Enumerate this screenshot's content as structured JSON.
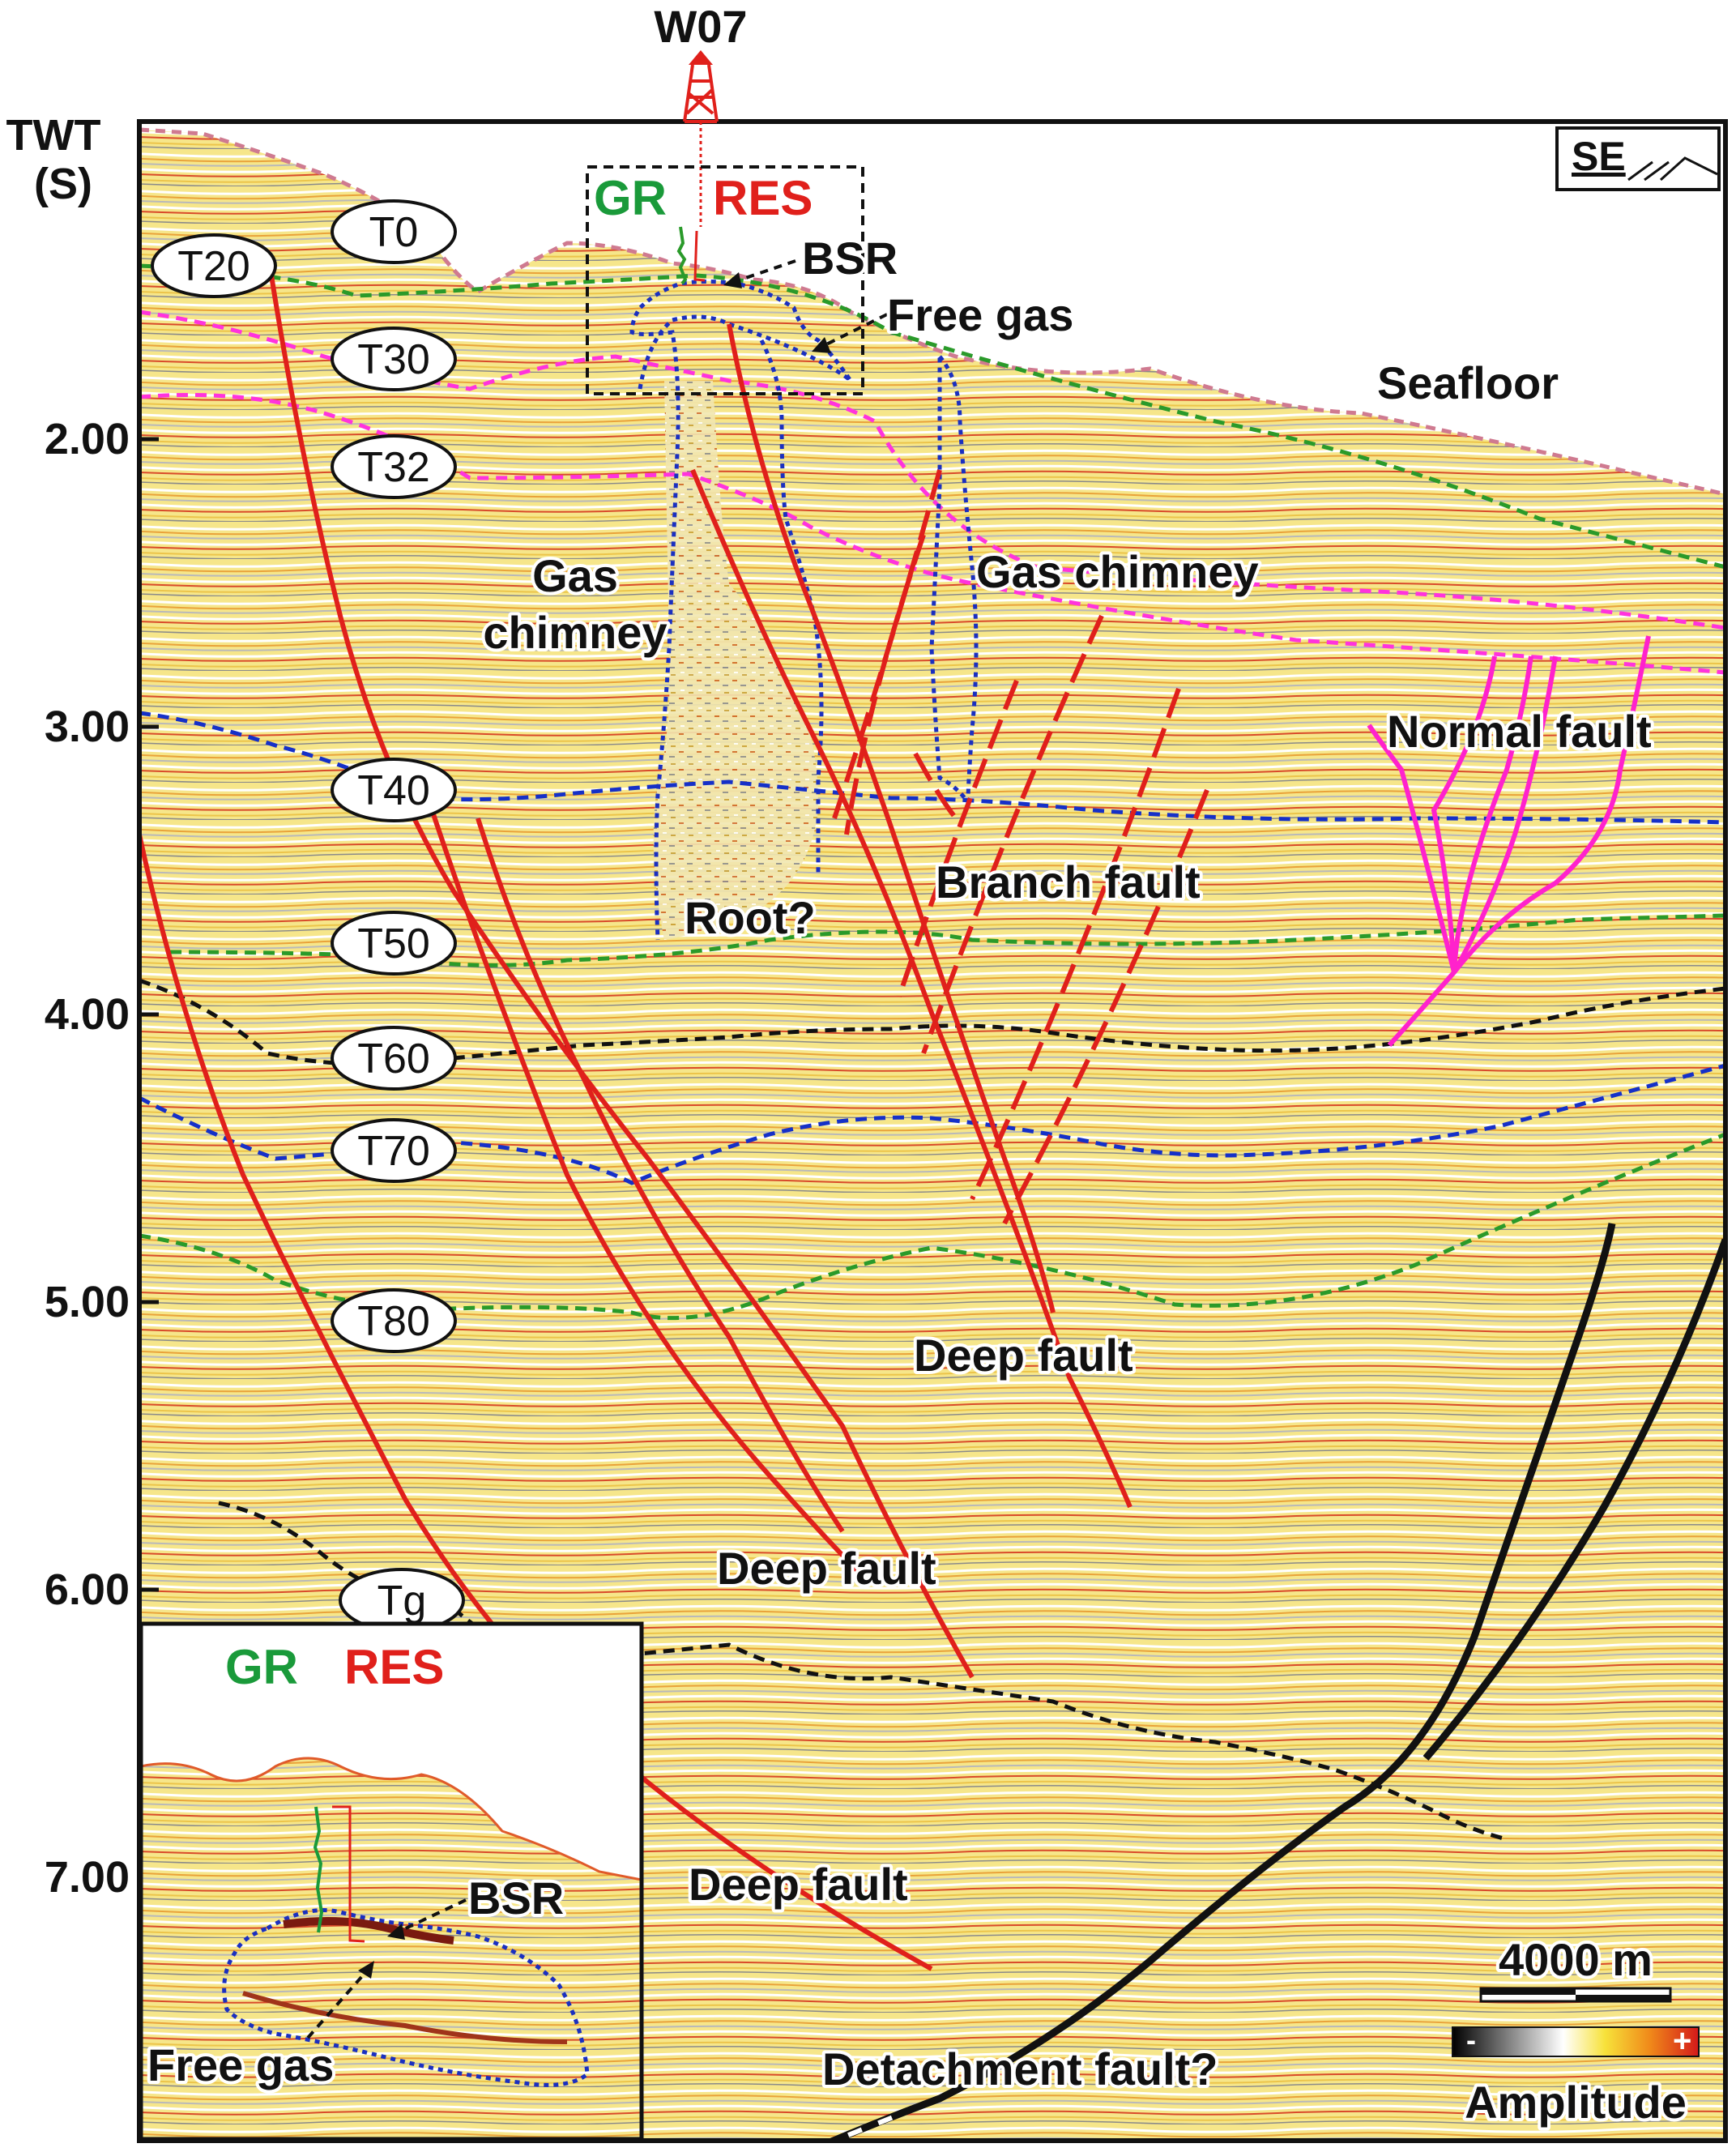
{
  "well": {
    "name": "W07",
    "gr_label": "GR",
    "res_label": "RES"
  },
  "axis": {
    "title_line1": "TWT",
    "title_line2": "(S)",
    "ticks": [
      "2.00",
      "3.00",
      "4.00",
      "5.00",
      "6.00",
      "7.00"
    ]
  },
  "orientation": "SE",
  "horizons": [
    "T0",
    "T20",
    "T30",
    "T32",
    "T40",
    "T50",
    "T60",
    "T70",
    "T80",
    "Tg"
  ],
  "annotations": {
    "bsr": "BSR",
    "free_gas": "Free gas",
    "seafloor": "Seafloor",
    "gas_chimney_left_line1": "Gas",
    "gas_chimney_left_line2": "chimney",
    "gas_chimney_right": "Gas chimney",
    "normal_fault": "Normal fault",
    "root": "Root?",
    "branch_fault": "Branch fault",
    "deep_fault_1": "Deep fault",
    "deep_fault_2": "Deep fault",
    "deep_fault_3": "Deep fault",
    "detachment_fault": "Detachment fault?"
  },
  "scale_bar": {
    "label": "4000 m"
  },
  "amplitude": {
    "title": "Amplitude",
    "minus": "-",
    "plus": "+"
  },
  "inset": {
    "gr_label": "GR",
    "res_label": "RES",
    "bsr": "BSR",
    "free_gas": "Free gas"
  },
  "colors": {
    "fault": "#e0201b",
    "normal_fault": "#ff22cc",
    "green_horizon": "#2a9a2a",
    "magenta_horizon": "#ff33dd",
    "blue_horizon": "#1530c8",
    "black_horizon": "#111111",
    "gas_outline": "#1a2fc0",
    "seismic_base": "#f7e98a"
  }
}
